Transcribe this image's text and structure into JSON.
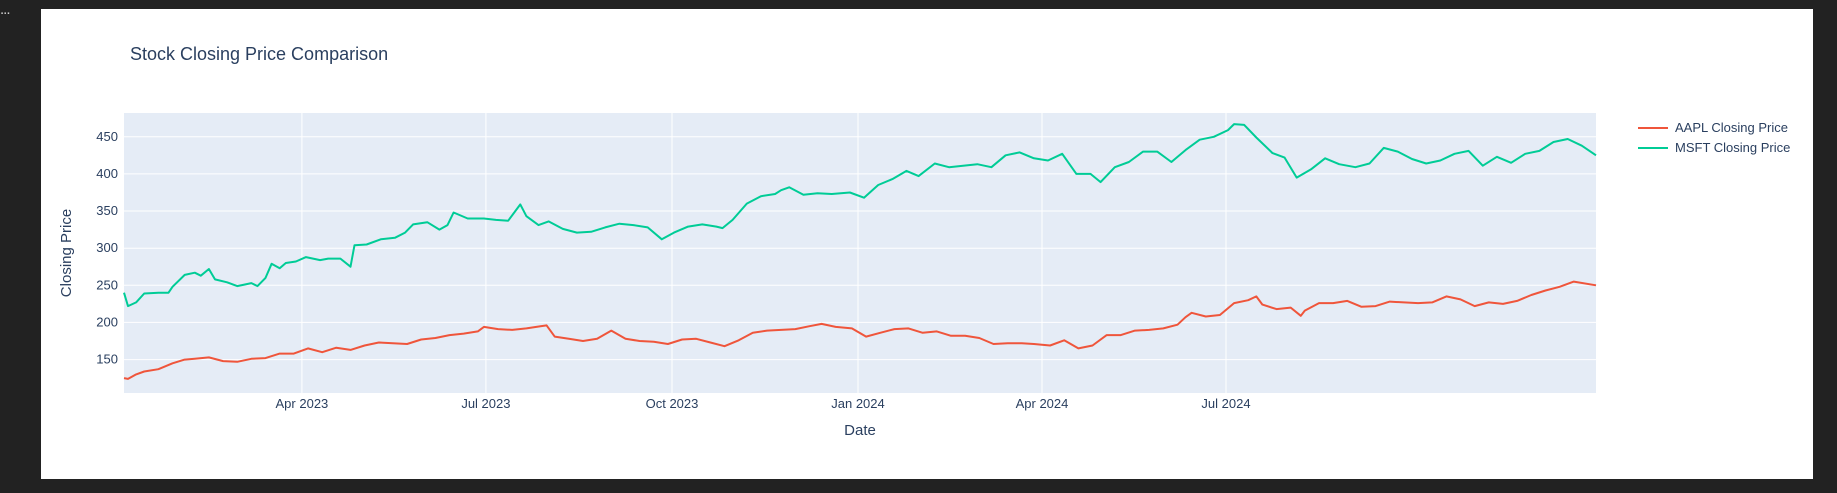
{
  "window": {
    "corner_glyph": "..."
  },
  "chart_data": {
    "type": "line",
    "title": "Stock Closing Price Comparison",
    "xlabel": "Date",
    "ylabel": "Closing Price",
    "xlim": [
      "2023-01-03",
      "2024-12-31"
    ],
    "ylim": [
      105,
      482
    ],
    "x_ticks": [
      {
        "date": "2023-04-01",
        "label": "Apr 2023"
      },
      {
        "date": "2023-07-01",
        "label": "Jul 2023"
      },
      {
        "date": "2023-10-01",
        "label": "Oct 2023"
      },
      {
        "date": "2024-01-01",
        "label": "Jan 2024"
      },
      {
        "date": "2024-04-01",
        "label": "Apr 2024"
      },
      {
        "date": "2024-07-01",
        "label": "Jul 2024"
      }
    ],
    "y_ticks": [
      150,
      200,
      250,
      300,
      350,
      400,
      450
    ],
    "grid": true,
    "legend_position": "right",
    "plot_background": "#e5ecf6",
    "series": [
      {
        "name": "AAPL Closing Price",
        "color": "#ef553b",
        "points": [
          [
            "2023-01-03",
            125
          ],
          [
            "2023-01-05",
            124
          ],
          [
            "2023-01-09",
            130
          ],
          [
            "2023-01-13",
            134
          ],
          [
            "2023-01-20",
            137
          ],
          [
            "2023-01-27",
            145
          ],
          [
            "2023-02-02",
            150
          ],
          [
            "2023-02-07",
            151
          ],
          [
            "2023-02-14",
            153
          ],
          [
            "2023-02-21",
            148
          ],
          [
            "2023-02-28",
            147
          ],
          [
            "2023-03-07",
            151
          ],
          [
            "2023-03-14",
            152
          ],
          [
            "2023-03-21",
            158
          ],
          [
            "2023-03-28",
            158
          ],
          [
            "2023-04-04",
            165
          ],
          [
            "2023-04-11",
            160
          ],
          [
            "2023-04-18",
            166
          ],
          [
            "2023-04-25",
            163
          ],
          [
            "2023-05-02",
            169
          ],
          [
            "2023-05-09",
            173
          ],
          [
            "2023-05-16",
            172
          ],
          [
            "2023-05-23",
            171
          ],
          [
            "2023-05-30",
            177
          ],
          [
            "2023-06-06",
            179
          ],
          [
            "2023-06-13",
            183
          ],
          [
            "2023-06-20",
            185
          ],
          [
            "2023-06-27",
            188
          ],
          [
            "2023-06-30",
            194
          ],
          [
            "2023-07-07",
            191
          ],
          [
            "2023-07-14",
            190
          ],
          [
            "2023-07-21",
            192
          ],
          [
            "2023-07-28",
            195
          ],
          [
            "2023-07-31",
            196
          ],
          [
            "2023-08-04",
            181
          ],
          [
            "2023-08-11",
            178
          ],
          [
            "2023-08-18",
            175
          ],
          [
            "2023-08-25",
            178
          ],
          [
            "2023-09-01",
            189
          ],
          [
            "2023-09-08",
            178
          ],
          [
            "2023-09-15",
            175
          ],
          [
            "2023-09-22",
            174
          ],
          [
            "2023-09-29",
            171
          ],
          [
            "2023-10-06",
            177
          ],
          [
            "2023-10-13",
            178
          ],
          [
            "2023-10-20",
            173
          ],
          [
            "2023-10-27",
            168
          ],
          [
            "2023-11-03",
            176
          ],
          [
            "2023-11-10",
            186
          ],
          [
            "2023-11-17",
            189
          ],
          [
            "2023-11-24",
            190
          ],
          [
            "2023-12-01",
            191
          ],
          [
            "2023-12-08",
            195
          ],
          [
            "2023-12-14",
            198
          ],
          [
            "2023-12-21",
            194
          ],
          [
            "2023-12-29",
            192
          ],
          [
            "2024-01-05",
            181
          ],
          [
            "2024-01-12",
            186
          ],
          [
            "2024-01-19",
            191
          ],
          [
            "2024-01-26",
            192
          ],
          [
            "2024-02-02",
            186
          ],
          [
            "2024-02-09",
            188
          ],
          [
            "2024-02-16",
            182
          ],
          [
            "2024-02-23",
            182
          ],
          [
            "2024-03-01",
            179
          ],
          [
            "2024-03-08",
            171
          ],
          [
            "2024-03-15",
            172
          ],
          [
            "2024-03-22",
            172
          ],
          [
            "2024-03-28",
            171
          ],
          [
            "2024-04-05",
            169
          ],
          [
            "2024-04-12",
            176
          ],
          [
            "2024-04-19",
            165
          ],
          [
            "2024-04-26",
            169
          ],
          [
            "2024-05-03",
            183
          ],
          [
            "2024-05-10",
            183
          ],
          [
            "2024-05-17",
            189
          ],
          [
            "2024-05-24",
            190
          ],
          [
            "2024-05-31",
            192
          ],
          [
            "2024-06-07",
            197
          ],
          [
            "2024-06-11",
            207
          ],
          [
            "2024-06-14",
            213
          ],
          [
            "2024-06-21",
            208
          ],
          [
            "2024-06-28",
            210
          ],
          [
            "2024-07-05",
            226
          ],
          [
            "2024-07-12",
            230
          ],
          [
            "2024-07-16",
            235
          ],
          [
            "2024-07-19",
            224
          ],
          [
            "2024-07-26",
            218
          ],
          [
            "2024-08-02",
            220
          ],
          [
            "2024-08-07",
            209
          ],
          [
            "2024-08-09",
            216
          ],
          [
            "2024-08-16",
            226
          ],
          [
            "2024-08-23",
            226
          ],
          [
            "2024-08-30",
            229
          ],
          [
            "2024-09-06",
            221
          ],
          [
            "2024-09-13",
            222
          ],
          [
            "2024-09-20",
            228
          ],
          [
            "2024-09-27",
            227
          ],
          [
            "2024-10-04",
            226
          ],
          [
            "2024-10-11",
            227
          ],
          [
            "2024-10-18",
            235
          ],
          [
            "2024-10-25",
            231
          ],
          [
            "2024-11-01",
            222
          ],
          [
            "2024-11-08",
            227
          ],
          [
            "2024-11-15",
            225
          ],
          [
            "2024-11-22",
            229
          ],
          [
            "2024-11-29",
            237
          ],
          [
            "2024-12-06",
            243
          ],
          [
            "2024-12-13",
            248
          ],
          [
            "2024-12-20",
            255
          ],
          [
            "2024-12-31",
            250
          ]
        ]
      },
      {
        "name": "MSFT Closing Price",
        "color": "#00cc96",
        "points": [
          [
            "2023-01-03",
            240
          ],
          [
            "2023-01-05",
            222
          ],
          [
            "2023-01-09",
            227
          ],
          [
            "2023-01-13",
            239
          ],
          [
            "2023-01-20",
            240
          ],
          [
            "2023-01-25",
            240
          ],
          [
            "2023-01-27",
            248
          ],
          [
            "2023-02-02",
            264
          ],
          [
            "2023-02-07",
            267
          ],
          [
            "2023-02-10",
            263
          ],
          [
            "2023-02-14",
            272
          ],
          [
            "2023-02-17",
            258
          ],
          [
            "2023-02-23",
            254
          ],
          [
            "2023-02-28",
            249
          ],
          [
            "2023-03-07",
            253
          ],
          [
            "2023-03-10",
            249
          ],
          [
            "2023-03-14",
            260
          ],
          [
            "2023-03-17",
            279
          ],
          [
            "2023-03-21",
            273
          ],
          [
            "2023-03-24",
            280
          ],
          [
            "2023-03-29",
            282
          ],
          [
            "2023-04-03",
            288
          ],
          [
            "2023-04-10",
            284
          ],
          [
            "2023-04-14",
            286
          ],
          [
            "2023-04-20",
            286
          ],
          [
            "2023-04-25",
            275
          ],
          [
            "2023-04-27",
            304
          ],
          [
            "2023-05-03",
            305
          ],
          [
            "2023-05-10",
            312
          ],
          [
            "2023-05-17",
            314
          ],
          [
            "2023-05-22",
            321
          ],
          [
            "2023-05-26",
            332
          ],
          [
            "2023-06-02",
            335
          ],
          [
            "2023-06-08",
            325
          ],
          [
            "2023-06-12",
            331
          ],
          [
            "2023-06-15",
            348
          ],
          [
            "2023-06-22",
            340
          ],
          [
            "2023-06-30",
            340
          ],
          [
            "2023-07-06",
            338
          ],
          [
            "2023-07-12",
            337
          ],
          [
            "2023-07-18",
            359
          ],
          [
            "2023-07-21",
            343
          ],
          [
            "2023-07-27",
            331
          ],
          [
            "2023-08-01",
            336
          ],
          [
            "2023-08-08",
            326
          ],
          [
            "2023-08-15",
            321
          ],
          [
            "2023-08-22",
            322
          ],
          [
            "2023-08-29",
            328
          ],
          [
            "2023-09-05",
            333
          ],
          [
            "2023-09-12",
            331
          ],
          [
            "2023-09-19",
            328
          ],
          [
            "2023-09-26",
            312
          ],
          [
            "2023-10-02",
            321
          ],
          [
            "2023-10-09",
            329
          ],
          [
            "2023-10-16",
            332
          ],
          [
            "2023-10-23",
            329
          ],
          [
            "2023-10-26",
            327
          ],
          [
            "2023-10-31",
            338
          ],
          [
            "2023-11-07",
            360
          ],
          [
            "2023-11-14",
            370
          ],
          [
            "2023-11-21",
            373
          ],
          [
            "2023-11-24",
            378
          ],
          [
            "2023-11-28",
            382
          ],
          [
            "2023-12-05",
            372
          ],
          [
            "2023-12-12",
            374
          ],
          [
            "2023-12-19",
            373
          ],
          [
            "2023-12-28",
            375
          ],
          [
            "2024-01-04",
            368
          ],
          [
            "2024-01-11",
            385
          ],
          [
            "2024-01-18",
            393
          ],
          [
            "2024-01-25",
            404
          ],
          [
            "2024-01-31",
            397
          ],
          [
            "2024-02-08",
            414
          ],
          [
            "2024-02-15",
            409
          ],
          [
            "2024-02-22",
            411
          ],
          [
            "2024-02-29",
            413
          ],
          [
            "2024-03-07",
            409
          ],
          [
            "2024-03-14",
            425
          ],
          [
            "2024-03-21",
            429
          ],
          [
            "2024-03-28",
            421
          ],
          [
            "2024-04-04",
            418
          ],
          [
            "2024-04-11",
            427
          ],
          [
            "2024-04-18",
            400
          ],
          [
            "2024-04-25",
            400
          ],
          [
            "2024-04-30",
            389
          ],
          [
            "2024-05-07",
            409
          ],
          [
            "2024-05-14",
            416
          ],
          [
            "2024-05-21",
            430
          ],
          [
            "2024-05-28",
            430
          ],
          [
            "2024-06-04",
            416
          ],
          [
            "2024-06-11",
            432
          ],
          [
            "2024-06-18",
            446
          ],
          [
            "2024-06-25",
            450
          ],
          [
            "2024-07-02",
            459
          ],
          [
            "2024-07-05",
            467
          ],
          [
            "2024-07-10",
            466
          ],
          [
            "2024-07-16",
            449
          ],
          [
            "2024-07-24",
            428
          ],
          [
            "2024-07-30",
            422
          ],
          [
            "2024-08-05",
            395
          ],
          [
            "2024-08-12",
            406
          ],
          [
            "2024-08-19",
            421
          ],
          [
            "2024-08-26",
            413
          ],
          [
            "2024-09-03",
            409
          ],
          [
            "2024-09-10",
            414
          ],
          [
            "2024-09-17",
            435
          ],
          [
            "2024-09-24",
            430
          ],
          [
            "2024-10-01",
            420
          ],
          [
            "2024-10-08",
            414
          ],
          [
            "2024-10-15",
            418
          ],
          [
            "2024-10-22",
            427
          ],
          [
            "2024-10-29",
            431
          ],
          [
            "2024-11-05",
            411
          ],
          [
            "2024-11-12",
            423
          ],
          [
            "2024-11-19",
            415
          ],
          [
            "2024-11-26",
            427
          ],
          [
            "2024-12-03",
            431
          ],
          [
            "2024-12-10",
            443
          ],
          [
            "2024-12-17",
            447
          ],
          [
            "2024-12-24",
            438
          ],
          [
            "2024-12-31",
            425
          ]
        ]
      }
    ]
  }
}
